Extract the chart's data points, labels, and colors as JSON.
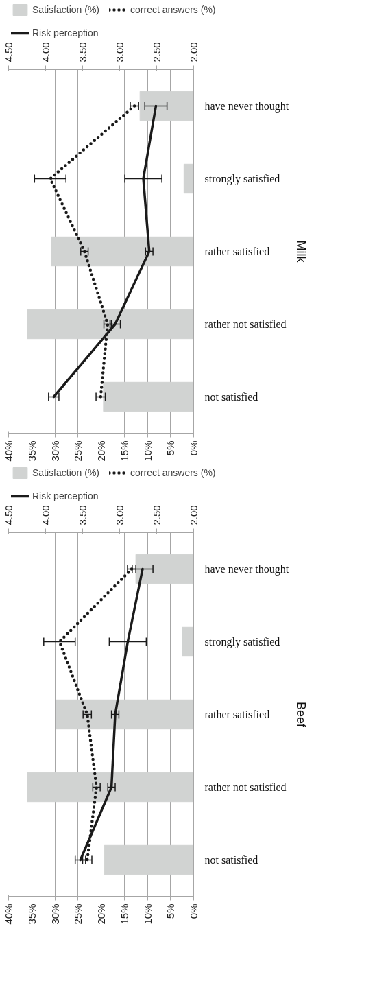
{
  "chart_data": [
    {
      "type": "bar",
      "orientation": "horizontal",
      "ylabel": "Milk",
      "categories": [
        "have never thought",
        "strongly satisfied",
        "rather satisfied",
        "rather not satisfied",
        "not satisfied"
      ],
      "series": [
        {
          "name": "Satisfaction (%)",
          "color": "#d1d3d2",
          "values": [
            11.6,
            2.1,
            30.8,
            36.0,
            19.5
          ]
        },
        {
          "name": "correct answers (%)",
          "type": "line",
          "line_style": "dotted",
          "color": "#1a1a1a",
          "values": [
            12.8,
            31.0,
            23.6,
            18.6,
            20.1
          ],
          "errors": [
            0.9,
            3.4,
            0.8,
            0.8,
            1.0
          ]
        },
        {
          "name": "Risk perception",
          "type": "line",
          "line_style": "solid",
          "axis": "x2",
          "color": "#1a1a1a",
          "values": [
            2.51,
            2.68,
            2.6,
            3.06,
            3.89
          ],
          "errors": [
            0.15,
            0.25,
            0.05,
            0.07,
            0.07
          ]
        }
      ],
      "xlim": [
        40,
        0
      ],
      "xticks": [
        {
          "value": 40,
          "label": "40%"
        },
        {
          "value": 35,
          "label": "35%"
        },
        {
          "value": 30,
          "label": "30%"
        },
        {
          "value": 25,
          "label": "25%"
        },
        {
          "value": 20,
          "label": "20%"
        },
        {
          "value": 15,
          "label": "15%"
        },
        {
          "value": 10,
          "label": "10%"
        },
        {
          "value": 5,
          "label": "5%"
        },
        {
          "value": 0,
          "label": "0%"
        }
      ],
      "x2lim": [
        4.5,
        2.0
      ],
      "x2ticks": [
        {
          "value": 4.5,
          "label": "4.50"
        },
        {
          "value": 4.0,
          "label": "4.00"
        },
        {
          "value": 3.5,
          "label": "3.50"
        },
        {
          "value": 3.0,
          "label": "3.00"
        },
        {
          "value": 2.5,
          "label": "2.50"
        },
        {
          "value": 2.0,
          "label": "2.00"
        }
      ],
      "grid": "x",
      "legend": "top"
    },
    {
      "type": "bar",
      "orientation": "horizontal",
      "ylabel": "Beef",
      "categories": [
        "have never thought",
        "strongly satisfied",
        "rather satisfied",
        "rather not satisfied",
        "not satisfied"
      ],
      "series": [
        {
          "name": "Satisfaction (%)",
          "color": "#d1d3d2",
          "values": [
            12.5,
            2.5,
            29.7,
            36.0,
            19.3
          ]
        },
        {
          "name": "correct answers (%)",
          "type": "line",
          "line_style": "dotted",
          "color": "#1a1a1a",
          "values": [
            13.4,
            29.0,
            23.0,
            21.0,
            23.0
          ],
          "errors": [
            0.9,
            3.4,
            0.9,
            0.8,
            1.0
          ]
        },
        {
          "name": "Risk perception",
          "type": "line",
          "line_style": "solid",
          "axis": "x2",
          "color": "#1a1a1a",
          "values": [
            2.69,
            2.89,
            3.06,
            3.11,
            3.53
          ],
          "errors": [
            0.14,
            0.25,
            0.05,
            0.05,
            0.07
          ]
        }
      ],
      "xlim": [
        40,
        0
      ],
      "xticks": [
        {
          "value": 40,
          "label": "40%"
        },
        {
          "value": 35,
          "label": "35%"
        },
        {
          "value": 30,
          "label": "30%"
        },
        {
          "value": 25,
          "label": "25%"
        },
        {
          "value": 20,
          "label": "20%"
        },
        {
          "value": 15,
          "label": "15%"
        },
        {
          "value": 10,
          "label": "10%"
        },
        {
          "value": 5,
          "label": "5%"
        },
        {
          "value": 0,
          "label": "0%"
        }
      ],
      "x2lim": [
        4.5,
        2.0
      ],
      "x2ticks": [
        {
          "value": 4.5,
          "label": "4.50"
        },
        {
          "value": 4.0,
          "label": "4.00"
        },
        {
          "value": 3.5,
          "label": "3.50"
        },
        {
          "value": 3.0,
          "label": "3.00"
        },
        {
          "value": 2.5,
          "label": "2.50"
        },
        {
          "value": 2.0,
          "label": "2.00"
        }
      ],
      "grid": "x",
      "legend": "top"
    }
  ]
}
